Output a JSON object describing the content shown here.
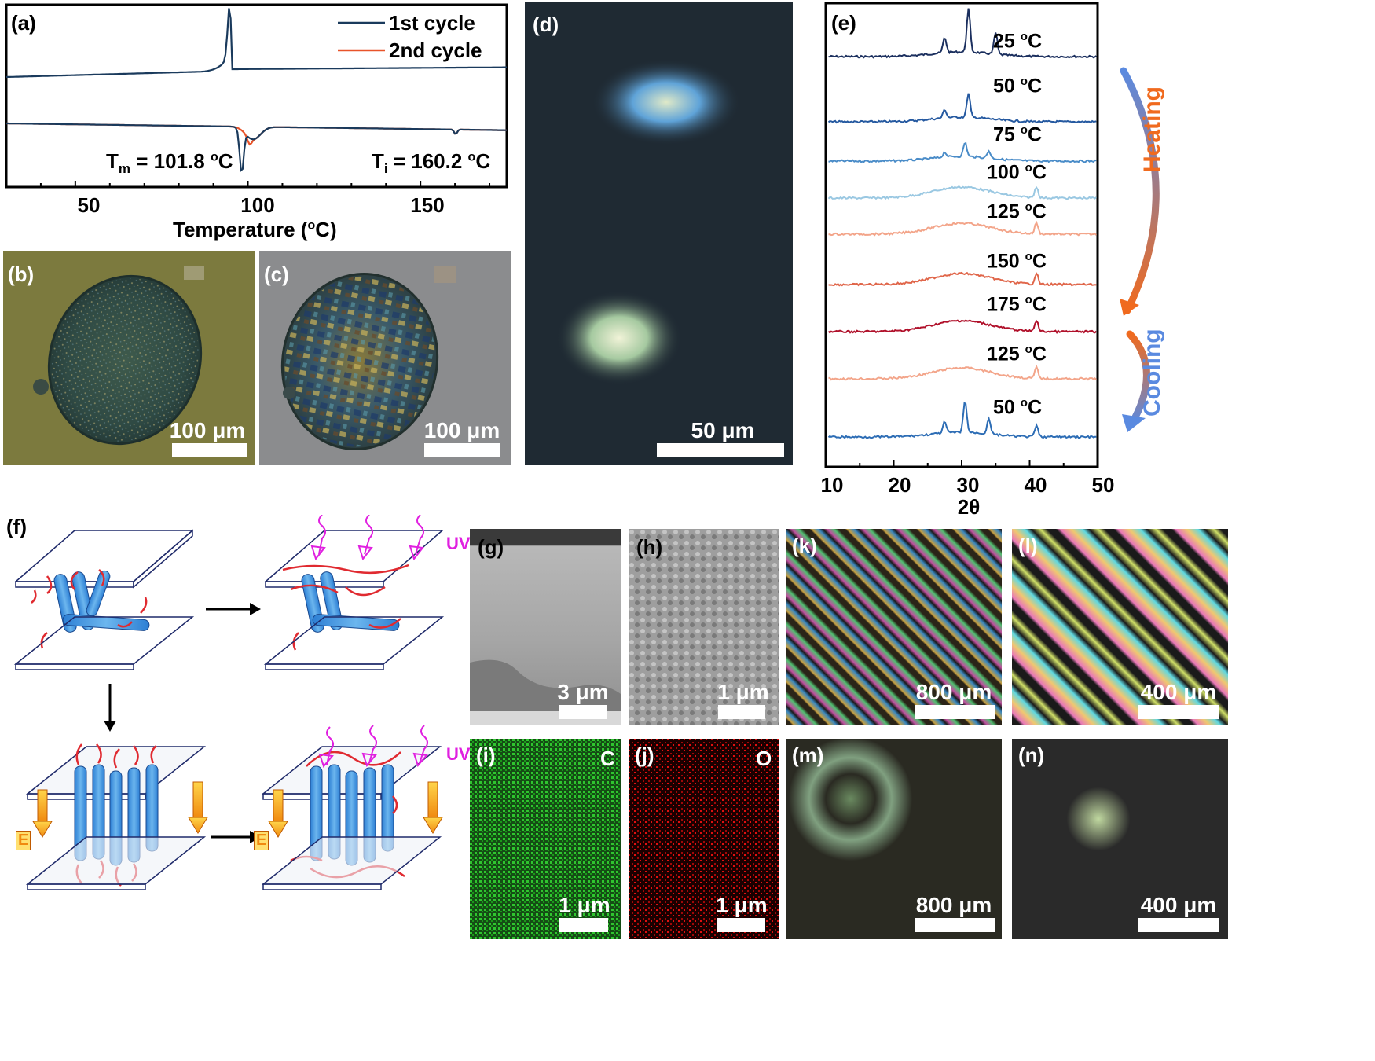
{
  "panels": {
    "a": {
      "label": "(a)",
      "legend": [
        {
          "name": "1st cycle",
          "color": "#1a3a5c"
        },
        {
          "name": "2nd cycle",
          "color": "#e8542a"
        }
      ],
      "tm_text": "T",
      "tm_sub": "m",
      "tm_value": " = 101.8 ",
      "ti_text": "T",
      "ti_sub": "i",
      "ti_value": " = 160.2 ",
      "deg_sup": "o",
      "deg_unit": "C",
      "xlabel": "Temperature (",
      "xlabel_sup": "o",
      "xlabel_end": "C)",
      "xticks": [
        "50",
        "100",
        "150"
      ]
    },
    "b": {
      "label": "(b)",
      "scale": "100 μm"
    },
    "c": {
      "label": "(c)",
      "scale": "100 μm"
    },
    "d": {
      "label": "(d)",
      "scale": "50 μm"
    },
    "e": {
      "label": "(e)",
      "xlabel": "2θ",
      "xticks": [
        "10",
        "20",
        "30",
        "40",
        "50"
      ],
      "heating": "Heating",
      "cooling": "Cooling"
    },
    "f": {
      "label": "(f)",
      "uv": "UV",
      "e_field": "E"
    },
    "g": {
      "label": "(g)",
      "scale": "3 μm"
    },
    "h": {
      "label": "(h)",
      "scale": "1 μm"
    },
    "i": {
      "label": "(i)",
      "element": "C",
      "scale": "1 μm"
    },
    "j": {
      "label": "(j)",
      "element": "O",
      "scale": "1 μm"
    },
    "k": {
      "label": "(k)",
      "scale": "800 μm"
    },
    "l": {
      "label": "(l)",
      "scale": "400 μm"
    },
    "m": {
      "label": "(m)",
      "scale": "800 μm"
    },
    "n": {
      "label": "(n)",
      "scale": "400 μm"
    }
  },
  "chart_data": [
    {
      "type": "line",
      "x_range": [
        30,
        175
      ],
      "xticks": [
        50,
        100,
        150
      ],
      "series": [
        {
          "name": "1st cycle",
          "color": "#1a3a5c"
        },
        {
          "name": "2nd cycle",
          "color": "#e8542a"
        }
      ],
      "annotations": [
        "T = 101.8 oC",
        "T = 160.2 oC"
      ]
    },
    {
      "type": "line",
      "xlabel": "2θ",
      "x_range": [
        10,
        50
      ],
      "xticks": [
        10,
        20,
        30,
        40,
        50
      ],
      "series": [
        {
          "name": "25 oC",
          "color": "#1b2f5e",
          "temp": "25",
          "peaks": [
            27.5,
            31,
            35
          ]
        },
        {
          "name": "50 oC",
          "color": "#2559a0",
          "temp": "50",
          "peaks": [
            27.5,
            31
          ]
        },
        {
          "name": "75 oC",
          "color": "#4a8cc8",
          "temp": "75",
          "peaks": [
            27.5,
            30.5,
            34
          ]
        },
        {
          "name": "100 oC",
          "color": "#9ac8e2",
          "temp": "100",
          "peaks": [
            41
          ]
        },
        {
          "name": "125 oC",
          "color": "#f3a58a",
          "temp": "125",
          "peaks": [
            41
          ]
        },
        {
          "name": "150 oC",
          "color": "#e0664a",
          "temp": "150",
          "peaks": [
            41
          ]
        },
        {
          "name": "175 oC",
          "color": "#b0102a",
          "temp": "175",
          "peaks": [
            41
          ]
        },
        {
          "name": "125 oC",
          "color": "#f3a58a",
          "temp": "125",
          "peaks": [
            41
          ]
        },
        {
          "name": "50 oC",
          "color": "#2d6db5",
          "temp": "50",
          "peaks": [
            27.5,
            30.5,
            34,
            41
          ]
        }
      ]
    }
  ]
}
